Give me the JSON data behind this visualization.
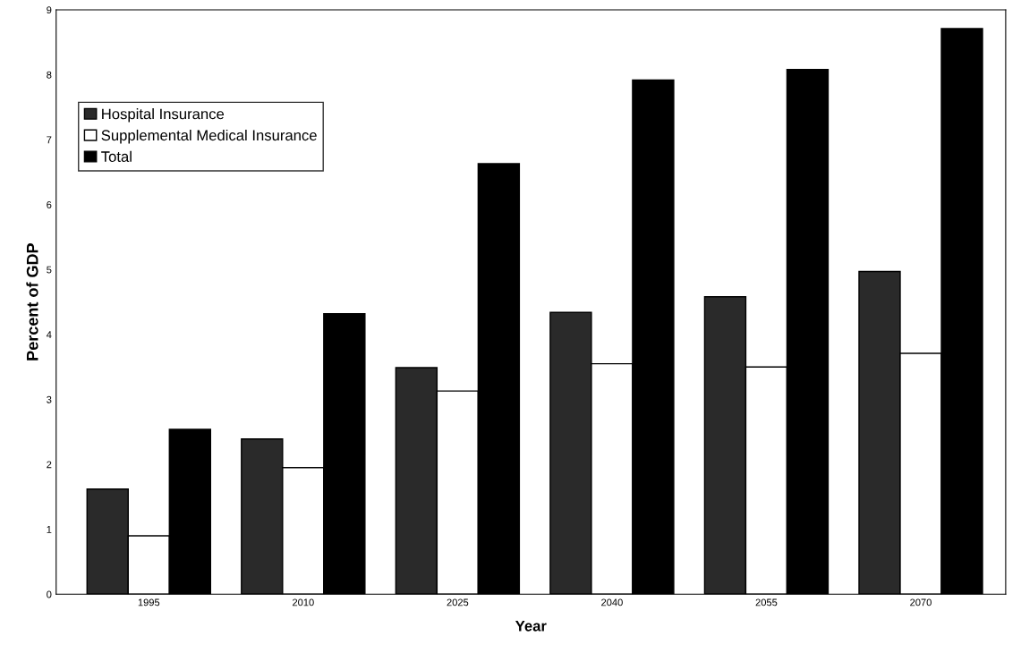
{
  "chart_data": {
    "type": "bar",
    "xlabel": "Year",
    "ylabel": "Percent of GDP",
    "categories": [
      "1995",
      "2010",
      "2025",
      "2040",
      "2055",
      "2070"
    ],
    "series": [
      {
        "name": "Hospital Insurance",
        "color": "#2a2a2a",
        "values": [
          1.62,
          2.39,
          3.49,
          4.34,
          4.58,
          4.97
        ]
      },
      {
        "name": "Supplemental Medical Insurance",
        "color": "#ffffff",
        "values": [
          0.9,
          1.95,
          3.13,
          3.55,
          3.5,
          3.71
        ]
      },
      {
        "name": "Total",
        "color": "#000000",
        "values": [
          2.54,
          4.32,
          6.63,
          7.92,
          8.08,
          8.71
        ]
      }
    ],
    "ylim": [
      0,
      9
    ],
    "yticks": [
      0,
      1,
      2,
      3,
      4,
      5,
      6,
      7,
      8,
      9
    ],
    "grid": false,
    "legend": "top left"
  }
}
